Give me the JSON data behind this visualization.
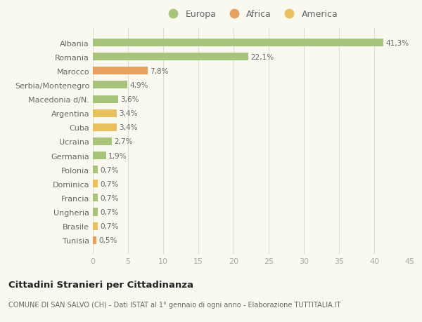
{
  "categories": [
    "Tunisia",
    "Brasile",
    "Ungheria",
    "Francia",
    "Dominica",
    "Polonia",
    "Germania",
    "Ucraina",
    "Cuba",
    "Argentina",
    "Macedonia d/N.",
    "Serbia/Montenegro",
    "Marocco",
    "Romania",
    "Albania"
  ],
  "values": [
    0.5,
    0.7,
    0.7,
    0.7,
    0.7,
    0.7,
    1.9,
    2.7,
    3.4,
    3.4,
    3.6,
    4.9,
    7.8,
    22.1,
    41.3
  ],
  "labels": [
    "0,5%",
    "0,7%",
    "0,7%",
    "0,7%",
    "0,7%",
    "0,7%",
    "1,9%",
    "2,7%",
    "3,4%",
    "3,4%",
    "3,6%",
    "4,9%",
    "7,8%",
    "22,1%",
    "41,3%"
  ],
  "colors": [
    "#e8a060",
    "#e8c060",
    "#a8c47c",
    "#a8c47c",
    "#e8c060",
    "#a8c47c",
    "#a8c47c",
    "#a8c47c",
    "#e8c060",
    "#e8c060",
    "#a8c47c",
    "#a8c47c",
    "#e8a060",
    "#a8c47c",
    "#a8c47c"
  ],
  "legend": [
    {
      "label": "Europa",
      "color": "#a8c47c"
    },
    {
      "label": "Africa",
      "color": "#e8a060"
    },
    {
      "label": "America",
      "color": "#e8c060"
    }
  ],
  "xlim": [
    0,
    45
  ],
  "xticks": [
    0,
    5,
    10,
    15,
    20,
    25,
    30,
    35,
    40,
    45
  ],
  "title1": "Cittadini Stranieri per Cittadinanza",
  "title2": "COMUNE DI SAN SALVO (CH) - Dati ISTAT al 1° gennaio di ogni anno - Elaborazione TUTTITALIA.IT",
  "background_color": "#f9f9f0",
  "plot_bg_color": "#f9f9f0",
  "bar_height": 0.55
}
